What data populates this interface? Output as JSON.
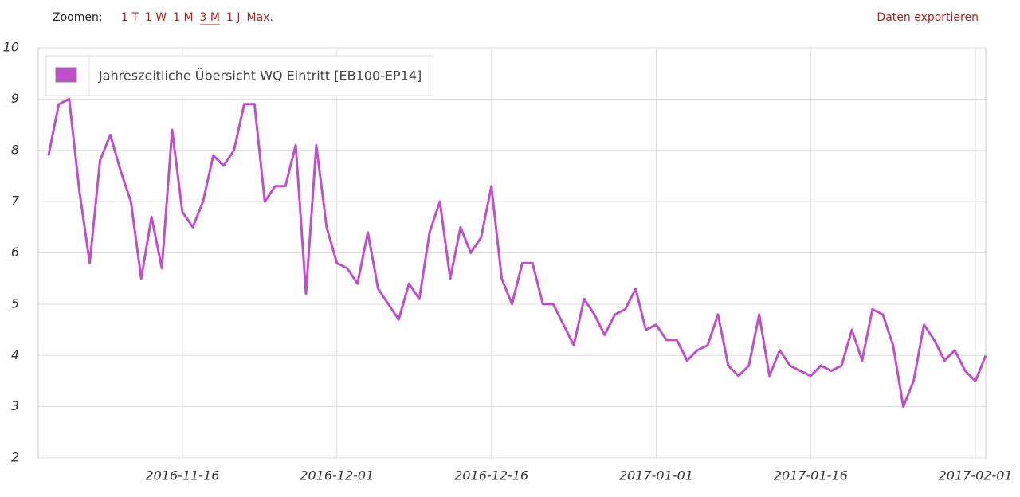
{
  "ui": {
    "zoom_label": "Zoomen:",
    "zoom_options": [
      "1 T",
      "1 W",
      "1 M",
      "3 M",
      "1 J",
      "Max."
    ],
    "selected_zoom": "3 M",
    "export_label": "Daten exportieren"
  },
  "chart_data": {
    "type": "line",
    "x": [
      "2016-11-03",
      "2016-11-04",
      "2016-11-05",
      "2016-11-06",
      "2016-11-07",
      "2016-11-08",
      "2016-11-09",
      "2016-11-10",
      "2016-11-11",
      "2016-11-12",
      "2016-11-13",
      "2016-11-14",
      "2016-11-15",
      "2016-11-16",
      "2016-11-17",
      "2016-11-18",
      "2016-11-19",
      "2016-11-20",
      "2016-11-21",
      "2016-11-22",
      "2016-11-23",
      "2016-11-24",
      "2016-11-25",
      "2016-11-26",
      "2016-11-27",
      "2016-11-28",
      "2016-11-29",
      "2016-11-30",
      "2016-12-01",
      "2016-12-02",
      "2016-12-03",
      "2016-12-04",
      "2016-12-05",
      "2016-12-06",
      "2016-12-07",
      "2016-12-08",
      "2016-12-09",
      "2016-12-10",
      "2016-12-11",
      "2016-12-12",
      "2016-12-13",
      "2016-12-14",
      "2016-12-15",
      "2016-12-16",
      "2016-12-17",
      "2016-12-18",
      "2016-12-19",
      "2016-12-20",
      "2016-12-21",
      "2016-12-22",
      "2016-12-23",
      "2016-12-24",
      "2016-12-25",
      "2016-12-26",
      "2016-12-27",
      "2016-12-28",
      "2016-12-29",
      "2016-12-30",
      "2016-12-31",
      "2017-01-01",
      "2017-01-02",
      "2017-01-03",
      "2017-01-04",
      "2017-01-05",
      "2017-01-06",
      "2017-01-07",
      "2017-01-08",
      "2017-01-09",
      "2017-01-10",
      "2017-01-11",
      "2017-01-12",
      "2017-01-13",
      "2017-01-14",
      "2017-01-15",
      "2017-01-16",
      "2017-01-17",
      "2017-01-18",
      "2017-01-19",
      "2017-01-20",
      "2017-01-21",
      "2017-01-22",
      "2017-01-23",
      "2017-01-24",
      "2017-01-25",
      "2017-01-26",
      "2017-01-27",
      "2017-01-28",
      "2017-01-29",
      "2017-01-30",
      "2017-01-31",
      "2017-02-01",
      "2017-02-02"
    ],
    "series": [
      {
        "name": "Jahreszeitliche Übersicht WQ Eintritt [EB100-EP14]",
        "color": "#bf4fcb",
        "values": [
          7.9,
          8.9,
          9.0,
          7.2,
          5.8,
          7.8,
          8.3,
          7.6,
          7.0,
          5.5,
          6.7,
          5.7,
          8.4,
          6.8,
          6.5,
          7.0,
          7.9,
          7.7,
          8.0,
          8.9,
          8.9,
          7.0,
          7.3,
          7.3,
          8.1,
          5.2,
          8.1,
          6.5,
          5.8,
          5.7,
          5.4,
          6.4,
          5.3,
          5.0,
          4.7,
          5.4,
          5.1,
          6.4,
          7.0,
          5.5,
          6.5,
          6.0,
          6.3,
          7.3,
          5.5,
          5.0,
          5.8,
          5.8,
          5.0,
          5.0,
          4.6,
          4.2,
          5.1,
          4.8,
          4.4,
          4.8,
          4.9,
          5.3,
          4.5,
          4.6,
          4.3,
          4.3,
          3.9,
          4.1,
          4.2,
          4.8,
          3.8,
          3.6,
          3.8,
          4.8,
          3.6,
          4.1,
          3.8,
          3.7,
          3.6,
          3.8,
          3.7,
          3.8,
          4.5,
          3.9,
          4.9,
          4.8,
          4.2,
          3.0,
          3.5,
          4.6,
          4.3,
          3.9,
          4.1,
          3.7,
          3.5,
          4.0
        ]
      }
    ],
    "xlim": [
      "2016-11-02",
      "2017-02-02"
    ],
    "xticks": [
      "2016-11-16",
      "2016-12-01",
      "2016-12-16",
      "2017-01-01",
      "2017-01-16",
      "2017-02-01"
    ],
    "ylim": [
      2,
      10
    ],
    "yticks": [
      2,
      3,
      4,
      5,
      6,
      7,
      8,
      9,
      10
    ],
    "grid": true,
    "legend": "upper left"
  }
}
